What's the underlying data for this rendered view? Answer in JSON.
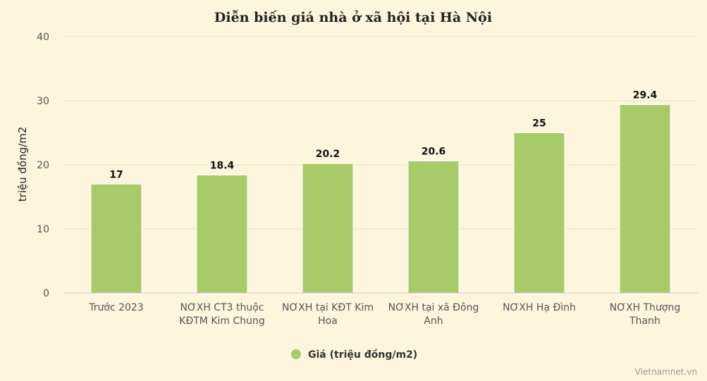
{
  "chart_data": {
    "type": "bar",
    "title": "Diễn biến giá nhà ở xã hội tại Hà Nội",
    "ylabel": "triệu đồng/m2",
    "xlabel": "",
    "categories": [
      [
        "Trước 2023"
      ],
      [
        "NƠXH CT3 thuộc",
        "KĐTM Kim Chung"
      ],
      [
        "NƠXH tại KĐT Kim",
        "Hoa"
      ],
      [
        "NƠXH tại xã Đông",
        "Anh"
      ],
      [
        "NƠXH Hạ Đình"
      ],
      [
        "NƠXH Thượng",
        "Thanh"
      ]
    ],
    "series": [
      {
        "name": "Giá (triệu đồng/m2)",
        "values": [
          17,
          18.4,
          20.2,
          20.6,
          25,
          29.4
        ],
        "color": "#a8cb6a"
      }
    ],
    "ylim": [
      0,
      40
    ],
    "yticks": [
      0,
      10,
      20,
      30,
      40
    ],
    "grid": true,
    "legend": "bottom-center"
  },
  "credit": "Vietnamnet.vn"
}
